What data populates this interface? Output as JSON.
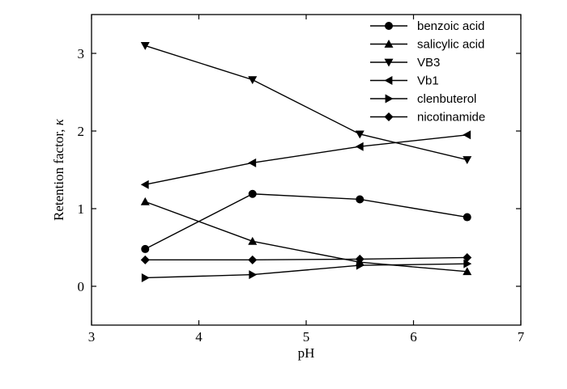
{
  "chart_data": {
    "type": "line",
    "xlabel": "pH",
    "ylabel_text": "Retention factor, ",
    "ylabel_symbol": "κ",
    "xlim": [
      3,
      7
    ],
    "ylim": [
      -0.5,
      3.5
    ],
    "x_ticks": [
      3,
      4,
      5,
      6,
      7
    ],
    "y_ticks": [
      0,
      1,
      2,
      3
    ],
    "grid": false,
    "legend_position": "top-right",
    "x": [
      3.5,
      4.5,
      5.5,
      6.5
    ],
    "series": [
      {
        "name": "benzoic acid",
        "marker": "circle",
        "values": [
          0.48,
          1.19,
          1.12,
          0.89
        ]
      },
      {
        "name": "salicylic acid",
        "marker": "triangle-up",
        "values": [
          1.09,
          0.58,
          0.31,
          0.19
        ]
      },
      {
        "name": "VB3",
        "marker": "triangle-down",
        "values": [
          3.1,
          2.66,
          1.96,
          1.63
        ]
      },
      {
        "name": "Vb1",
        "marker": "triangle-left",
        "values": [
          1.31,
          1.59,
          1.8,
          1.95
        ]
      },
      {
        "name": "clenbuterol",
        "marker": "triangle-right",
        "values": [
          0.11,
          0.15,
          0.27,
          0.29
        ]
      },
      {
        "name": "nicotinamide",
        "marker": "diamond",
        "values": [
          0.34,
          0.34,
          0.35,
          0.37
        ]
      }
    ]
  }
}
